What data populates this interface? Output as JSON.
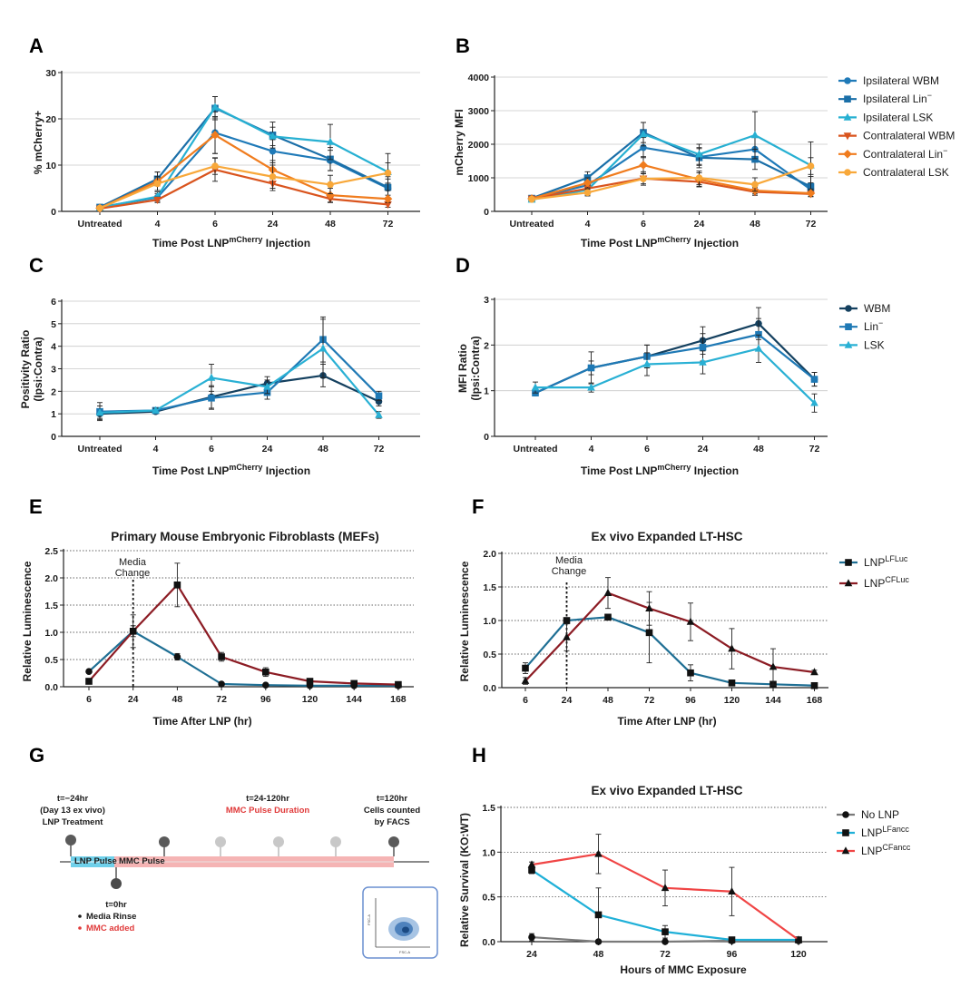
{
  "panels": {
    "A": {
      "label": "A",
      "xlabel": "Time Post LNP",
      "xlabel_sup": "mCherry",
      "xlabel_tail": " Injection",
      "ylabel": "% mCherry+"
    },
    "B": {
      "label": "B",
      "xlabel": "Time Post LNP",
      "xlabel_sup": "mCherry",
      "xlabel_tail": " Injection",
      "ylabel": "mCherry MFI"
    },
    "C": {
      "label": "C",
      "xlabel": "Time Post LNP",
      "xlabel_sup": "mCherry",
      "xlabel_tail": " Injection",
      "ylabel1": "Positivity Ratio",
      "ylabel2": "(Ipsi:Contra)"
    },
    "D": {
      "label": "D",
      "xlabel": "Time Post LNP",
      "xlabel_sup": "mCherry",
      "xlabel_tail": " Injection",
      "ylabel1": "MFI Ratio",
      "ylabel2": "(Ipsi:Contra)"
    },
    "E": {
      "label": "E",
      "title": "Primary Mouse Embryonic Fibroblasts (MEFs)",
      "xlabel": "Time After LNP (hr)",
      "ylabel": "Relative Luminescence",
      "annotation1": "Media",
      "annotation2": "Change"
    },
    "F": {
      "label": "F",
      "title": "Ex vivo Expanded LT-HSC",
      "xlabel": "Time After LNP (hr)",
      "ylabel": "Relative Luminescence",
      "annotation1": "Media",
      "annotation2": "Change"
    },
    "G": {
      "label": "G"
    },
    "H": {
      "label": "H",
      "title": "Ex vivo Expanded LT-HSC",
      "xlabel": "Hours of MMC Exposure",
      "ylabel": "Relative Survival (KO:WT)"
    }
  },
  "legends": {
    "AB": [
      {
        "text": "Ipsilateral WBM",
        "sup": "",
        "color": "#1f7ab8",
        "marker": "circle"
      },
      {
        "text": "Ipsilateral Lin",
        "sup": "−",
        "color": "#1a6fa8",
        "marker": "square"
      },
      {
        "text": "Ipsilateral LSK",
        "sup": "",
        "color": "#27b0d2",
        "marker": "triangle"
      },
      {
        "text": "Contralateral WBM",
        "sup": "",
        "color": "#d9541e",
        "marker": "triangle-down"
      },
      {
        "text": "Contralateral Lin",
        "sup": "−",
        "color": "#f07c1e",
        "marker": "diamond"
      },
      {
        "text": "Contralateral LSK",
        "sup": "",
        "color": "#f8a83a",
        "marker": "circle"
      }
    ],
    "CD": [
      {
        "text": "WBM",
        "sup": "",
        "color": "#14405f",
        "marker": "circle"
      },
      {
        "text": "Lin",
        "sup": "−",
        "color": "#1f79b5",
        "marker": "square"
      },
      {
        "text": "LSK",
        "sup": "",
        "color": "#29b0d4",
        "marker": "triangle"
      }
    ],
    "F": [
      {
        "text": "LNP",
        "sup": "LFLuc",
        "color": "#1f6f94",
        "marker": "square"
      },
      {
        "text": "LNP",
        "sup": "CFLuc",
        "color": "#8c1c24",
        "marker": "triangle"
      }
    ],
    "H": [
      {
        "text": "No LNP",
        "sup": "",
        "color": "#7a7a7a",
        "marker": "circle"
      },
      {
        "text": "LNP",
        "sup": "LFancc",
        "color": "#1fb0d8",
        "marker": "square"
      },
      {
        "text": "LNP",
        "sup": "CFancc",
        "color": "#f04545",
        "marker": "triangle"
      }
    ]
  },
  "timeline": {
    "t_start": "t=−24hr",
    "t_start2": "(Day 13 ex vivo)",
    "t_start3": "LNP Treatment",
    "mid_title": "t=24-120hr",
    "mid_red": "MMC Pulse Duration",
    "end1": "t=120hr",
    "end2": "Cells counted",
    "end3": "by FACS",
    "pulse1": "LNP Pulse",
    "pulse2": "MMC Pulse",
    "t0": "t=0hr",
    "step1": "Media Rinse",
    "step2": "MMC added",
    "facs_y": "FSC-A",
    "facs_x": "FSC-A"
  },
  "chart_data": [
    {
      "panel": "A",
      "type": "line",
      "categories": [
        "Untreated",
        "4",
        "6",
        "24",
        "48",
        "72"
      ],
      "ylim": [
        0,
        30
      ],
      "yticks": [
        0,
        10,
        20,
        30
      ],
      "series": [
        {
          "name": "Ipsilateral WBM",
          "color": "#1f7ab8",
          "marker": "circle",
          "values": [
            0.9,
            3.0,
            17.0,
            13.0,
            11.0,
            5.0
          ],
          "err": [
            0.3,
            0.8,
            4.5,
            2.5,
            2.2,
            2.0
          ]
        },
        {
          "name": "Ipsilateral Lin−",
          "color": "#1a6fa8",
          "marker": "square",
          "values": [
            0.9,
            7.0,
            22.3,
            16.5,
            11.3,
            5.2
          ],
          "err": [
            0.3,
            1.5,
            2.5,
            2.8,
            2.5,
            2.3
          ]
        },
        {
          "name": "Ipsilateral LSK",
          "color": "#27b0d2",
          "marker": "triangle",
          "values": [
            0.8,
            3.2,
            22.5,
            16.2,
            15.0,
            8.5
          ],
          "err": [
            0.3,
            1.0,
            2.3,
            2.0,
            3.8,
            4.0
          ]
        },
        {
          "name": "Contralateral WBM",
          "color": "#d9541e",
          "marker": "triangle-down",
          "values": [
            0.6,
            2.5,
            9.0,
            6.0,
            2.7,
            1.5
          ],
          "err": [
            0.2,
            0.6,
            2.5,
            1.5,
            0.8,
            0.6
          ]
        },
        {
          "name": "Contralateral Lin−",
          "color": "#f07c1e",
          "marker": "diamond",
          "values": [
            0.7,
            6.5,
            16.5,
            9.0,
            3.5,
            2.7
          ],
          "err": [
            0.3,
            2.0,
            4.0,
            2.0,
            1.5,
            0.8
          ]
        },
        {
          "name": "Contralateral LSK",
          "color": "#f8a83a",
          "marker": "circle",
          "values": [
            0.7,
            6.0,
            9.8,
            7.5,
            5.8,
            8.3
          ],
          "err": [
            0.2,
            1.5,
            1.8,
            2.5,
            2.0,
            2.2
          ]
        }
      ]
    },
    {
      "panel": "B",
      "type": "line",
      "categories": [
        "Untreated",
        "4",
        "6",
        "24",
        "48",
        "72"
      ],
      "ylim": [
        0,
        4000
      ],
      "yticks": [
        0,
        1000,
        2000,
        3000,
        4000
      ],
      "series": [
        {
          "name": "Ipsilateral WBM",
          "color": "#1f7ab8",
          "marker": "circle",
          "values": [
            380,
            780,
            1900,
            1620,
            1850,
            650
          ],
          "err": [
            50,
            150,
            300,
            250,
            350,
            200
          ]
        },
        {
          "name": "Ipsilateral Lin−",
          "color": "#1a6fa8",
          "marker": "square",
          "values": [
            390,
            1000,
            2350,
            1600,
            1550,
            740
          ],
          "err": [
            60,
            180,
            300,
            300,
            300,
            300
          ]
        },
        {
          "name": "Ipsilateral LSK",
          "color": "#27b0d2",
          "marker": "triangle",
          "values": [
            350,
            640,
            2300,
            1700,
            2270,
            1370
          ],
          "err": [
            50,
            150,
            350,
            300,
            700,
            700
          ]
        },
        {
          "name": "Contralateral WBM",
          "color": "#d9541e",
          "marker": "triangle-down",
          "values": [
            380,
            680,
            980,
            880,
            580,
            520
          ],
          "err": [
            40,
            100,
            200,
            150,
            100,
            80
          ]
        },
        {
          "name": "Contralateral Lin−",
          "color": "#f07c1e",
          "marker": "diamond",
          "values": [
            380,
            850,
            1380,
            950,
            620,
            540
          ],
          "err": [
            40,
            150,
            250,
            200,
            100,
            90
          ]
        },
        {
          "name": "Contralateral LSK",
          "color": "#f8a83a",
          "marker": "circle",
          "values": [
            360,
            560,
            970,
            1000,
            800,
            1350
          ],
          "err": [
            40,
            100,
            150,
            200,
            200,
            250
          ]
        }
      ]
    },
    {
      "panel": "C",
      "type": "line",
      "categories": [
        "Untreated",
        "4",
        "6",
        "24",
        "48",
        "72"
      ],
      "ylim": [
        0,
        6
      ],
      "yticks": [
        0,
        1,
        2,
        3,
        4,
        5,
        6
      ],
      "series": [
        {
          "name": "WBM",
          "color": "#14405f",
          "marker": "circle",
          "values": [
            1.0,
            1.1,
            1.75,
            2.35,
            2.7,
            1.55
          ],
          "err": [
            0.2,
            0.1,
            0.5,
            0.3,
            0.5,
            0.2
          ]
        },
        {
          "name": "Lin−",
          "color": "#1f79b5",
          "marker": "square",
          "values": [
            1.1,
            1.15,
            1.7,
            1.95,
            4.3,
            1.8
          ],
          "err": [
            0.4,
            0.1,
            0.5,
            0.3,
            1.0,
            0.2
          ]
        },
        {
          "name": "LSK",
          "color": "#29b0d4",
          "marker": "triangle",
          "values": [
            1.05,
            1.15,
            2.6,
            2.2,
            3.9,
            0.95
          ],
          "err": [
            0.3,
            0.1,
            0.6,
            0.3,
            1.3,
            0.15
          ]
        }
      ]
    },
    {
      "panel": "D",
      "type": "line",
      "categories": [
        "Untreated",
        "4",
        "6",
        "24",
        "48",
        "72"
      ],
      "ylim": [
        0,
        3
      ],
      "yticks": [
        0,
        1,
        2,
        3
      ],
      "series": [
        {
          "name": "WBM",
          "color": "#14405f",
          "marker": "circle",
          "values": [
            0.95,
            1.5,
            1.75,
            2.1,
            2.47,
            1.25
          ],
          "err": [
            0.05,
            0.15,
            0.25,
            0.3,
            0.35,
            0.15
          ]
        },
        {
          "name": "Lin−",
          "color": "#1f79b5",
          "marker": "square",
          "values": [
            0.95,
            1.5,
            1.75,
            1.95,
            2.23,
            1.25
          ],
          "err": [
            0.05,
            0.35,
            0.25,
            0.3,
            0.35,
            0.15
          ]
        },
        {
          "name": "LSK",
          "color": "#29b0d4",
          "marker": "triangle",
          "values": [
            1.07,
            1.07,
            1.58,
            1.62,
            1.92,
            0.73
          ],
          "err": [
            0.12,
            0.1,
            0.25,
            0.25,
            0.3,
            0.2
          ]
        }
      ]
    },
    {
      "panel": "E",
      "type": "line",
      "categories": [
        "6",
        "24",
        "48",
        "72",
        "96",
        "120",
        "144",
        "168"
      ],
      "ylim": [
        0,
        2.5
      ],
      "yticks": [
        0.0,
        0.5,
        1.0,
        1.5,
        2.0,
        2.5
      ],
      "vline_category": "24",
      "series": [
        {
          "name": "LNP LFLuc",
          "color": "#1f6f94",
          "marker": "circle",
          "values": [
            0.28,
            1.02,
            0.55,
            0.05,
            0.03,
            0.02,
            0.02,
            0.02
          ],
          "err": [
            0.02,
            0.1,
            0.06,
            0.02,
            0.01,
            0.01,
            0.01,
            0.01
          ]
        },
        {
          "name": "LNP CFLuc",
          "color": "#8c1c24",
          "marker": "square",
          "values": [
            0.1,
            1.02,
            1.87,
            0.55,
            0.27,
            0.1,
            0.06,
            0.04
          ],
          "err": [
            0.03,
            0.3,
            0.4,
            0.08,
            0.08,
            0.03,
            0.02,
            0.02
          ]
        }
      ]
    },
    {
      "panel": "F",
      "type": "line",
      "categories": [
        "6",
        "24",
        "48",
        "72",
        "96",
        "120",
        "144",
        "168"
      ],
      "ylim": [
        0,
        2.0
      ],
      "yticks": [
        0.0,
        0.5,
        1.0,
        1.5,
        2.0
      ],
      "vline_category": "24",
      "series": [
        {
          "name": "LNP LFLuc",
          "color": "#1f6f94",
          "marker": "square",
          "values": [
            0.29,
            1.0,
            1.05,
            0.82,
            0.22,
            0.07,
            0.05,
            0.03
          ],
          "err": [
            0.08,
            0.03,
            0.02,
            0.45,
            0.12,
            0.03,
            0.02,
            0.01
          ]
        },
        {
          "name": "LNP CFLuc",
          "color": "#8c1c24",
          "marker": "triangle",
          "values": [
            0.1,
            0.75,
            1.41,
            1.18,
            0.98,
            0.58,
            0.31,
            0.23
          ],
          "err": [
            0.05,
            0.2,
            0.23,
            0.25,
            0.28,
            0.3,
            0.27,
            0.03
          ]
        }
      ]
    },
    {
      "panel": "H",
      "type": "line",
      "categories": [
        "24",
        "48",
        "72",
        "96",
        "120"
      ],
      "ylim": [
        0,
        1.5
      ],
      "yticks": [
        0.0,
        0.5,
        1.0,
        1.5
      ],
      "series": [
        {
          "name": "No LNP",
          "color": "#7a7a7a",
          "marker": "circle",
          "values": [
            0.05,
            0.0,
            0.0,
            0.01,
            0.01
          ],
          "err": [
            0.04,
            0.01,
            0.01,
            0.01,
            0.01
          ]
        },
        {
          "name": "LNP LFancc",
          "color": "#1fb0d8",
          "marker": "square",
          "values": [
            0.8,
            0.3,
            0.11,
            0.02,
            0.02
          ],
          "err": [
            0.04,
            0.3,
            0.07,
            0.01,
            0.01
          ]
        },
        {
          "name": "LNP CFancc",
          "color": "#f04545",
          "marker": "triangle",
          "values": [
            0.86,
            0.98,
            0.6,
            0.56,
            0.02
          ],
          "err": [
            0.03,
            0.22,
            0.2,
            0.27,
            0.01
          ]
        }
      ]
    }
  ]
}
